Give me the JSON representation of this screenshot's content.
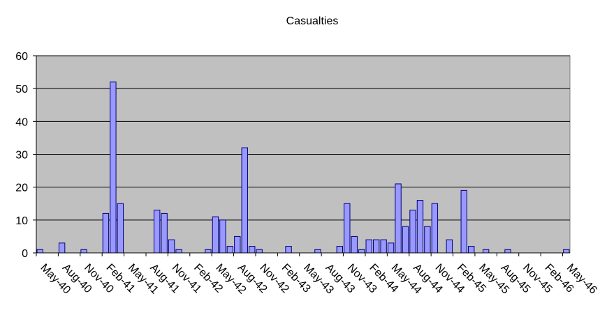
{
  "chart_data": {
    "type": "bar",
    "title": "Casualties",
    "xlabel": "",
    "ylabel": "",
    "ylim": [
      0,
      60
    ],
    "yticks": [
      0,
      10,
      20,
      30,
      40,
      50,
      60
    ],
    "grid": true,
    "legend": "none",
    "colors": {
      "plot_background": "#c0c0c0",
      "bar_fill": "#9999ff",
      "bar_stroke": "#000080",
      "gridline": "#000000"
    },
    "x_tick_labels": [
      "May-40",
      "Aug-40",
      "Nov-40",
      "Feb-41",
      "May-41",
      "Aug-41",
      "Nov-41",
      "Feb-42",
      "May-42",
      "Aug-42",
      "Nov-42",
      "Feb-43",
      "May-43",
      "Aug-43",
      "Nov-43",
      "Feb-44",
      "May-44",
      "Aug-44",
      "Nov-44",
      "Feb-45",
      "May-45",
      "Aug-45",
      "Nov-45",
      "Feb-46",
      "May-46"
    ],
    "categories": [
      "May-40",
      "Jun-40",
      "Jul-40",
      "Aug-40",
      "Sep-40",
      "Oct-40",
      "Nov-40",
      "Dec-40",
      "Jan-41",
      "Feb-41",
      "Mar-41",
      "Apr-41",
      "May-41",
      "Jun-41",
      "Jul-41",
      "Aug-41",
      "Sep-41",
      "Oct-41",
      "Nov-41",
      "Dec-41",
      "Jan-42",
      "Feb-42",
      "Mar-42",
      "Apr-42",
      "May-42",
      "Jun-42",
      "Jul-42",
      "Aug-42",
      "Sep-42",
      "Oct-42",
      "Nov-42",
      "Dec-42",
      "Jan-43",
      "Feb-43",
      "Mar-43",
      "Apr-43",
      "May-43",
      "Jun-43",
      "Jul-43",
      "Aug-43",
      "Sep-43",
      "Oct-43",
      "Nov-43",
      "Dec-43",
      "Jan-44",
      "Feb-44",
      "Mar-44",
      "Apr-44",
      "May-44",
      "Jun-44",
      "Jul-44",
      "Aug-44",
      "Sep-44",
      "Oct-44",
      "Nov-44",
      "Dec-44",
      "Jan-45",
      "Feb-45",
      "Mar-45",
      "Apr-45",
      "May-45",
      "Jun-45",
      "Jul-45",
      "Aug-45",
      "Sep-45",
      "Oct-45",
      "Nov-45",
      "Dec-45",
      "Jan-46",
      "Feb-46",
      "Mar-46",
      "Apr-46",
      "May-46"
    ],
    "values": [
      1,
      0,
      0,
      3,
      0,
      0,
      1,
      0,
      0,
      12,
      52,
      15,
      0,
      0,
      0,
      0,
      13,
      12,
      4,
      1,
      0,
      0,
      0,
      1,
      11,
      10,
      2,
      5,
      32,
      2,
      1,
      0,
      0,
      0,
      2,
      0,
      0,
      0,
      1,
      0,
      0,
      2,
      15,
      5,
      1,
      4,
      4,
      4,
      3,
      21,
      8,
      13,
      16,
      8,
      15,
      0,
      4,
      0,
      19,
      2,
      0,
      1,
      0,
      0,
      1,
      0,
      0,
      0,
      0,
      0,
      0,
      0,
      1
    ]
  }
}
